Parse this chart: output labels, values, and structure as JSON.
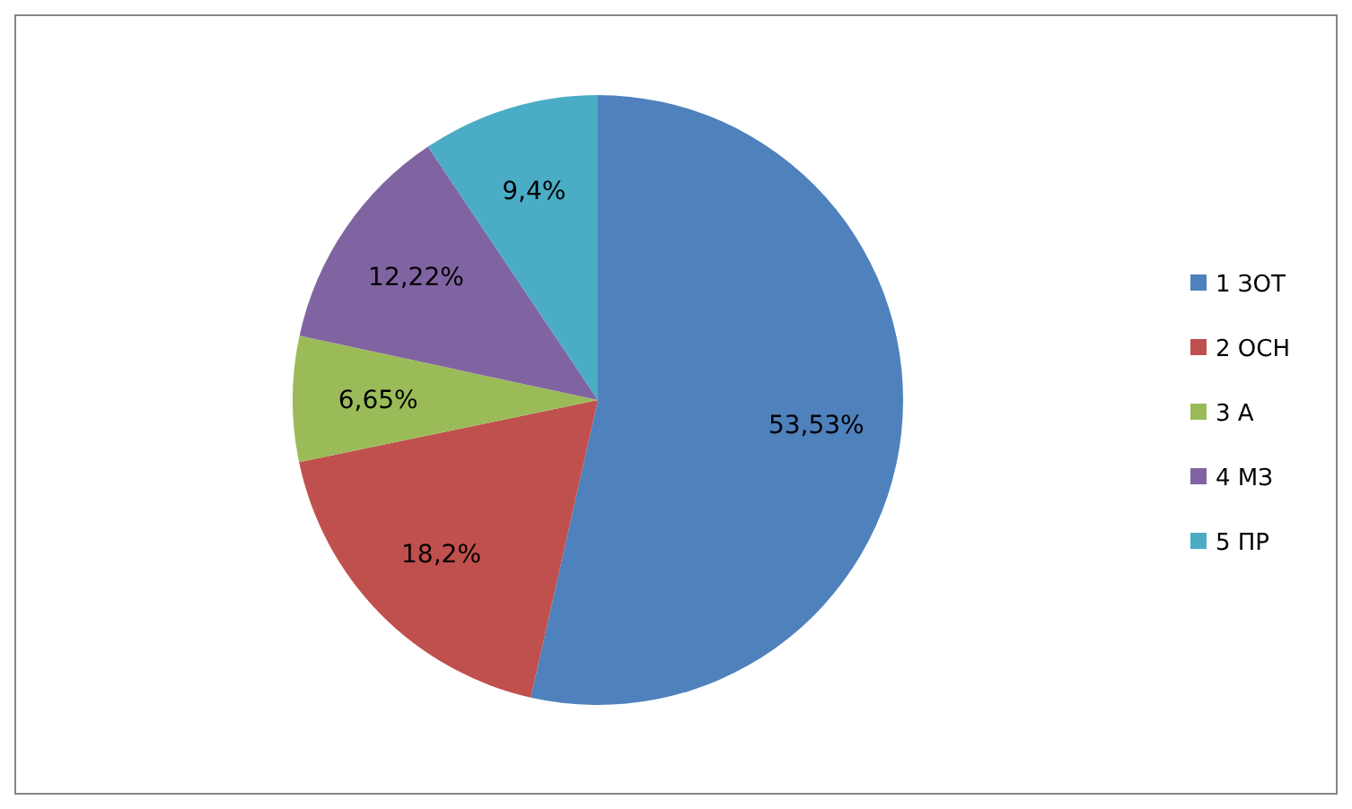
{
  "chart_data": {
    "type": "pie",
    "categories": [
      "1 ЗОТ",
      "2 ОСН",
      "3 А",
      "4 МЗ",
      "5 ПР"
    ],
    "values": [
      53.53,
      18.2,
      6.65,
      12.22,
      9.4
    ],
    "colors": [
      "#4f81bd",
      "#c0504d",
      "#9bbb59",
      "#8064a2",
      "#4bacc6"
    ],
    "value_labels": [
      "53,53%",
      "18,2%",
      "6,65%",
      "12,22%",
      "9,4%"
    ],
    "legend": "right"
  }
}
